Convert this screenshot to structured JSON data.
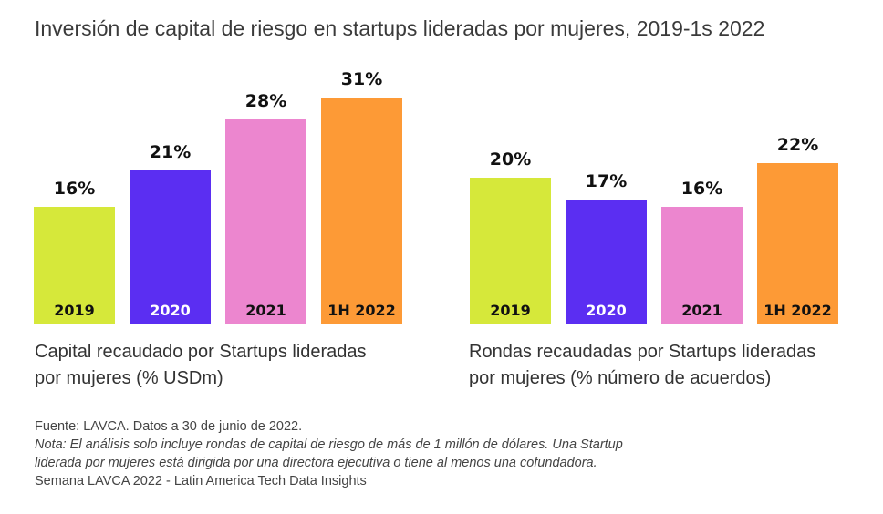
{
  "title": "Inversión de capital de riesgo en startups lideradas por mujeres, 2019-1s 2022",
  "colors": {
    "2019": "#d6e83a",
    "2020": "#5b2ef2",
    "2021": "#ec86cf",
    "1H 2022": "#fd9a36"
  },
  "chart_data": [
    {
      "type": "bar",
      "categories": [
        "2019",
        "2020",
        "2021",
        "1H 2022"
      ],
      "values": [
        16,
        21,
        28,
        31
      ],
      "value_labels": [
        "16%",
        "21%",
        "28%",
        "31%"
      ],
      "caption_lines": [
        "Capital recaudado por Startups lideradas",
        "por mujeres (% USDm)"
      ],
      "grid": false
    },
    {
      "type": "bar",
      "categories": [
        "2019",
        "2020",
        "2021",
        "1H 2022"
      ],
      "values": [
        20,
        17,
        16,
        22
      ],
      "value_labels": [
        "20%",
        "17%",
        "16%",
        "22%"
      ],
      "caption_lines": [
        "Rondas recaudadas por Startups lideradas",
        "por mujeres (% número de acuerdos)"
      ],
      "grid": false
    }
  ],
  "footnotes": {
    "source": "Fuente: LAVCA. Datos a 30 de junio de 2022.",
    "note_line1": "Nota: El análisis solo incluye rondas de capital de riesgo de más de 1 millón de dólares. Una Startup",
    "note_line2": "liderada por mujeres está dirigida por una directora ejecutiva o tiene al menos una cofundadora.",
    "credit": "Semana LAVCA 2022 - Latin America Tech Data Insights"
  }
}
